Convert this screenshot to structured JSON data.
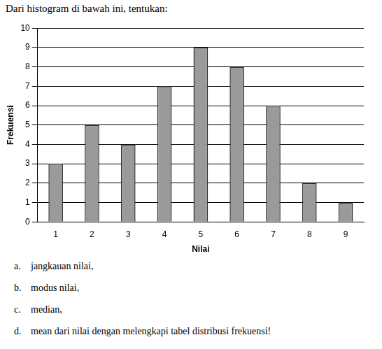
{
  "header": "Dari histogram di bawah ini, tentukan:",
  "chart_data": {
    "type": "bar",
    "x_label": "Nilai",
    "y_label": "Frekuensi",
    "categories": [
      "1",
      "2",
      "3",
      "4",
      "5",
      "6",
      "7",
      "8",
      "9"
    ],
    "values": [
      3,
      5,
      4,
      7,
      9,
      8,
      6,
      2,
      1
    ],
    "color": "#9a9a9a",
    "ylim": [
      0,
      10
    ],
    "yticks": [
      0,
      1,
      2,
      3,
      4,
      5,
      6,
      7,
      8,
      9,
      10
    ],
    "grid": true
  },
  "questions": [
    {
      "label": "a.",
      "text": "jangkauan nilai,"
    },
    {
      "label": "b.",
      "text": "modus nilai,"
    },
    {
      "label": "c.",
      "text": "median,"
    },
    {
      "label": "d.",
      "text": "mean dari nilai dengan melengkapi tabel distribusi frekuensi!"
    }
  ]
}
